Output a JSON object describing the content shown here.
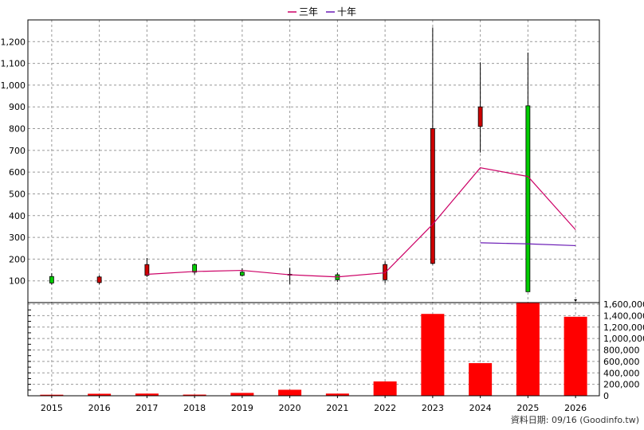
{
  "chart_data": {
    "type": "candlestick-with-volume",
    "legend": [
      {
        "name": "三年",
        "color": "#cc0066"
      },
      {
        "name": "十年",
        "color": "#6a1bb5"
      }
    ],
    "legend_position": "top-center",
    "grid": true,
    "source_note": "資料日期: 09/16 (Goodinfo.tw)",
    "categories": [
      "2015",
      "2016",
      "2017",
      "2018",
      "2019",
      "2020",
      "2021",
      "2022",
      "2023",
      "2024",
      "2025",
      "2026"
    ],
    "price_axis": {
      "ylim": [
        0,
        1300
      ],
      "ticks": [
        100,
        200,
        300,
        400,
        500,
        600,
        700,
        800,
        900,
        1000,
        1100,
        1200
      ],
      "tick_labels": [
        "100",
        "200",
        "300",
        "400",
        "500",
        "600",
        "700",
        "800",
        "900",
        "1,000",
        "1,100",
        "1,200"
      ]
    },
    "volume_axis": {
      "ylim": [
        0,
        1600000
      ],
      "ticks": [
        0,
        200000,
        400000,
        600000,
        800000,
        1000000,
        1200000,
        1400000,
        1600000
      ],
      "tick_labels": [
        "0",
        "200,000",
        "400,000",
        "600,000",
        "800,000",
        "1,000,000",
        "1,200,000",
        "1,400,000",
        "1,600,000"
      ]
    },
    "candles": [
      {
        "year": "2015",
        "open": 90,
        "close": 120,
        "high": 135,
        "low": 82,
        "color": "#00cc00"
      },
      {
        "year": "2016",
        "open": 118,
        "close": 92,
        "high": 125,
        "low": 85,
        "color": "#cc0000"
      },
      {
        "year": "2017",
        "open": 125,
        "close": 175,
        "high": 205,
        "low": 118,
        "color": "#cc0000"
      },
      {
        "year": "2018",
        "open": 140,
        "close": 175,
        "high": 180,
        "low": 130,
        "color": "#00cc00"
      },
      {
        "year": "2019",
        "open": 125,
        "close": 140,
        "high": 158,
        "low": 120,
        "color": "#00cc00"
      },
      {
        "year": "2020",
        "open": 130,
        "close": 128,
        "high": 160,
        "low": 85,
        "color": "#cc0000"
      },
      {
        "year": "2021",
        "open": 105,
        "close": 128,
        "high": 138,
        "low": 95,
        "color": "#00cc00"
      },
      {
        "year": "2022",
        "open": 175,
        "close": 105,
        "high": 190,
        "low": 90,
        "color": "#cc0000"
      },
      {
        "year": "2023",
        "open": 800,
        "close": 180,
        "high": 1265,
        "low": 175,
        "color": "#cc0000"
      },
      {
        "year": "2024",
        "open": 900,
        "close": 810,
        "high": 1105,
        "low": 690,
        "color": "#cc0000"
      },
      {
        "year": "2025",
        "open": 50,
        "close": 905,
        "high": 1150,
        "low": 50,
        "color": "#00cc00"
      },
      {
        "year": "2026",
        "open": 0,
        "close": 0,
        "high": 0,
        "low": 0,
        "color": "#000000"
      }
    ],
    "series": [
      {
        "name": "三年",
        "color": "#cc0066",
        "x": [
          "2017",
          "2018",
          "2019",
          "2020",
          "2021",
          "2022",
          "2023",
          "2024",
          "2025",
          "2026"
        ],
        "values": [
          130,
          143,
          148,
          128,
          118,
          137,
          360,
          620,
          580,
          335
        ]
      },
      {
        "name": "十年",
        "color": "#6a1bb5",
        "x": [
          "2024",
          "2025",
          "2026"
        ],
        "values": [
          275,
          270,
          262
        ]
      }
    ],
    "volume": {
      "color": "#ff0000",
      "values": [
        18000,
        35000,
        38000,
        20000,
        50000,
        105000,
        38000,
        250000,
        1430000,
        570000,
        1620000,
        1380000
      ]
    }
  }
}
